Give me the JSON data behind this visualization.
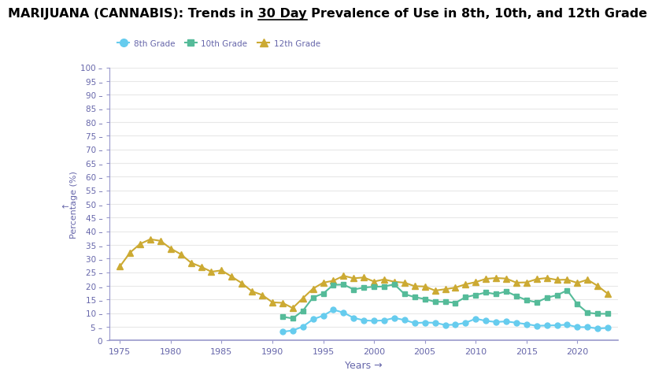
{
  "xlabel": "Years →",
  "ylabel": "↑\nPercentage (%)",
  "background_color": "#ffffff",
  "grid_color": "#e8e8e8",
  "axis_color": "#9999cc",
  "tick_color": "#6666aa",
  "grade8_color": "#66ccee",
  "grade10_color": "#55bb99",
  "grade12_color": "#ccaa33",
  "grade8": {
    "years": [
      1991,
      1992,
      1993,
      1994,
      1995,
      1996,
      1997,
      1998,
      1999,
      2000,
      2001,
      2002,
      2003,
      2004,
      2005,
      2006,
      2007,
      2008,
      2009,
      2010,
      2011,
      2012,
      2013,
      2014,
      2015,
      2016,
      2017,
      2018,
      2019,
      2020,
      2021,
      2022,
      2023
    ],
    "values": [
      3.2,
      3.7,
      5.1,
      7.8,
      9.1,
      11.3,
      10.2,
      8.3,
      7.4,
      7.2,
      7.4,
      8.3,
      7.5,
      6.4,
      6.6,
      6.5,
      5.7,
      5.8,
      6.5,
      8.0,
      7.2,
      6.8,
      7.0,
      6.5,
      6.0,
      5.4,
      5.5,
      5.6,
      5.8,
      4.9,
      4.9,
      4.4,
      4.6
    ]
  },
  "grade10": {
    "years": [
      1991,
      1992,
      1993,
      1994,
      1995,
      1996,
      1997,
      1998,
      1999,
      2000,
      2001,
      2002,
      2003,
      2004,
      2005,
      2006,
      2007,
      2008,
      2009,
      2010,
      2011,
      2012,
      2013,
      2014,
      2015,
      2016,
      2017,
      2018,
      2019,
      2020,
      2021,
      2022,
      2023
    ],
    "values": [
      8.7,
      8.1,
      10.9,
      15.8,
      17.2,
      20.4,
      20.5,
      18.7,
      19.4,
      19.7,
      19.8,
      20.6,
      17.0,
      15.9,
      15.2,
      14.2,
      14.2,
      13.8,
      15.9,
      16.7,
      17.6,
      17.0,
      18.0,
      16.3,
      14.8,
      14.0,
      15.7,
      16.6,
      18.4,
      13.3,
      10.2,
      9.8,
      9.8
    ]
  },
  "grade12": {
    "years": [
      1975,
      1976,
      1977,
      1978,
      1979,
      1980,
      1981,
      1982,
      1983,
      1984,
      1985,
      1986,
      1987,
      1988,
      1989,
      1990,
      1991,
      1992,
      1993,
      1994,
      1995,
      1996,
      1997,
      1998,
      1999,
      2000,
      2001,
      2002,
      2003,
      2004,
      2005,
      2006,
      2007,
      2008,
      2009,
      2010,
      2011,
      2012,
      2013,
      2014,
      2015,
      2016,
      2017,
      2018,
      2019,
      2020,
      2021,
      2022,
      2023
    ],
    "values": [
      27.1,
      32.2,
      35.4,
      37.1,
      36.5,
      33.7,
      31.6,
      28.5,
      27.0,
      25.2,
      25.7,
      23.4,
      21.0,
      18.0,
      16.7,
      14.0,
      13.8,
      11.9,
      15.5,
      19.0,
      21.2,
      21.9,
      23.7,
      22.8,
      23.1,
      21.6,
      22.4,
      21.5,
      21.2,
      19.9,
      19.8,
      18.3,
      18.8,
      19.4,
      20.6,
      21.4,
      22.6,
      22.9,
      22.7,
      21.2,
      21.3,
      22.5,
      22.9,
      22.2,
      22.3,
      21.1,
      22.3,
      20.0,
      17.1
    ]
  },
  "ylim": [
    0,
    100
  ],
  "yticks": [
    0,
    5,
    10,
    15,
    20,
    25,
    30,
    35,
    40,
    45,
    50,
    55,
    60,
    65,
    70,
    75,
    80,
    85,
    90,
    95,
    100
  ],
  "xticks": [
    1975,
    1980,
    1985,
    1990,
    1995,
    2000,
    2005,
    2010,
    2015,
    2020
  ],
  "xlim": [
    1974,
    2024
  ],
  "title_prefix": "MARIJUANA (CANNABIS): Trends in ",
  "title_underlined": "30 Day",
  "title_suffix": " Prevalence of Use in 8th, 10th, and 12th Grade",
  "legend_labels": [
    "8th Grade",
    "10th Grade",
    "12th Grade"
  ]
}
